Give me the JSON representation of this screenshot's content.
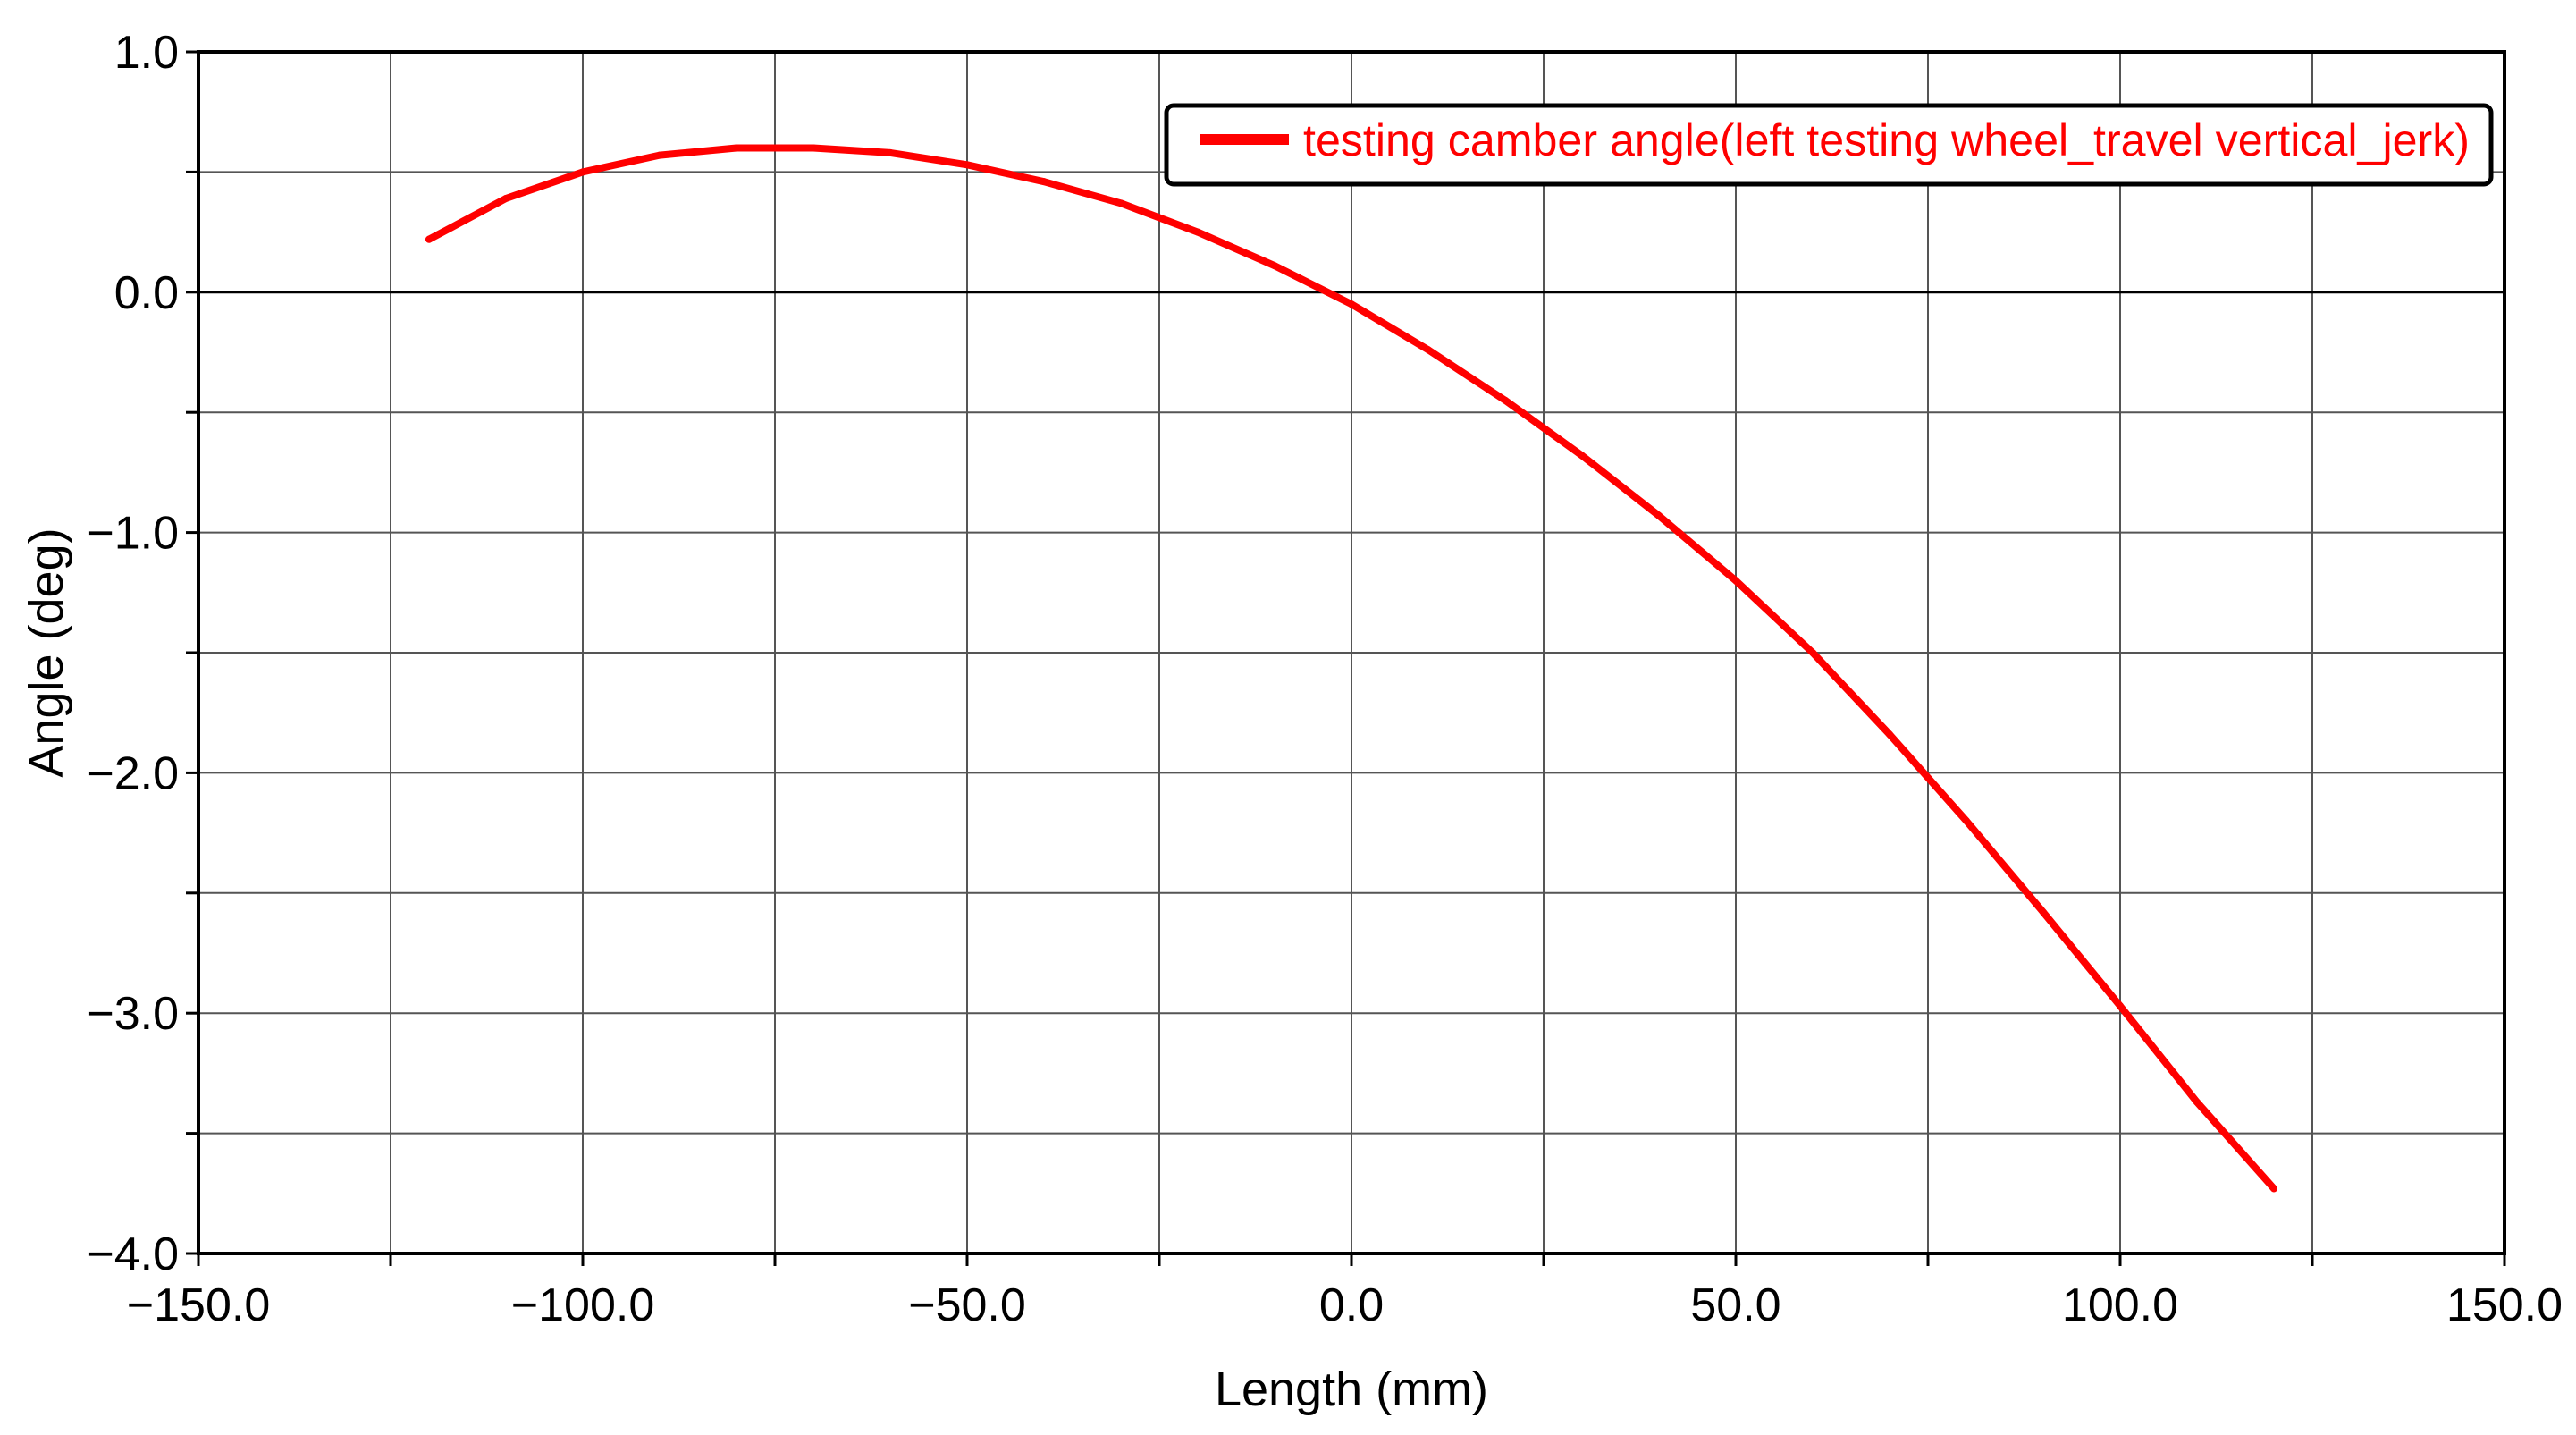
{
  "chart_data": {
    "type": "line",
    "title": "",
    "xlabel": "Length (mm)",
    "ylabel": "Angle (deg)",
    "xlim": [
      -150,
      150
    ],
    "ylim": [
      -4,
      1
    ],
    "x_ticks": [
      -150,
      -100,
      -50,
      0,
      50,
      100,
      150
    ],
    "x_tick_labels": [
      "−150.0",
      "−100.0",
      "−50.0",
      "0.0",
      "50.0",
      "100.0",
      "150.0"
    ],
    "y_ticks": [
      1,
      0,
      -1,
      -2,
      -3,
      -4
    ],
    "y_tick_labels": [
      "1.0",
      "0.0",
      "−1.0",
      "−2.0",
      "−3.0",
      "−4.0"
    ],
    "grid": true,
    "zero_line": true,
    "legend_position": "top-right",
    "series": [
      {
        "name": "testing camber angle(left testing wheel_travel vertical_jerk)",
        "color": "#ff0000",
        "x": [
          -120,
          -110,
          -100,
          -90,
          -80,
          -70,
          -60,
          -50,
          -40,
          -30,
          -20,
          -10,
          0,
          10,
          20,
          30,
          40,
          50,
          60,
          70,
          80,
          90,
          100,
          110,
          120
        ],
        "y": [
          0.22,
          0.39,
          0.5,
          0.57,
          0.6,
          0.6,
          0.58,
          0.53,
          0.46,
          0.37,
          0.25,
          0.11,
          -0.05,
          -0.24,
          -0.45,
          -0.68,
          -0.93,
          -1.2,
          -1.5,
          -1.84,
          -2.2,
          -2.58,
          -2.97,
          -3.37,
          -3.73
        ]
      }
    ]
  }
}
